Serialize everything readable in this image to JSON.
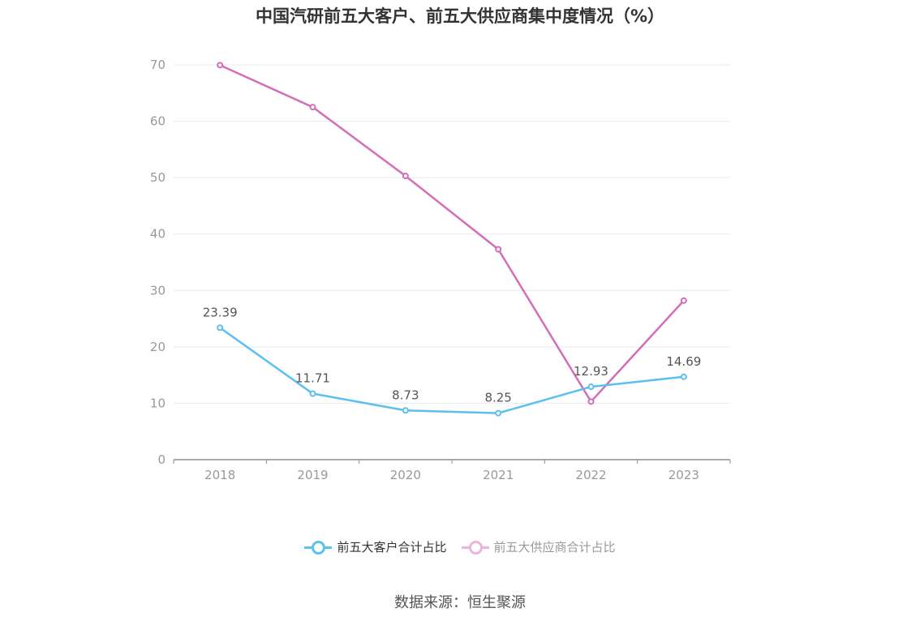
{
  "chart_data": {
    "type": "line",
    "title": "中国汽研前五大客户、前五大供应商集中度情况（%）",
    "categories": [
      "2018",
      "2019",
      "2020",
      "2021",
      "2022",
      "2023"
    ],
    "ylim": [
      0,
      70
    ],
    "yticks": [
      0,
      10,
      20,
      30,
      40,
      50,
      60,
      70
    ],
    "grid": true,
    "legend_position": "bottom",
    "series": [
      {
        "name": "前五大客户合计占比",
        "color": "#5bc0f0",
        "values": [
          23.39,
          11.71,
          8.73,
          8.25,
          12.93,
          14.69
        ],
        "labels": [
          "23.39",
          "11.71",
          "8.73",
          "8.25",
          "12.93",
          "14.69"
        ]
      },
      {
        "name": "前五大供应商合计占比",
        "color": "#d46db8",
        "values": [
          69.95,
          62.5,
          50.3,
          37.3,
          10.3,
          28.2
        ],
        "labels": []
      }
    ]
  },
  "source_text": "数据来源：恒生聚源"
}
